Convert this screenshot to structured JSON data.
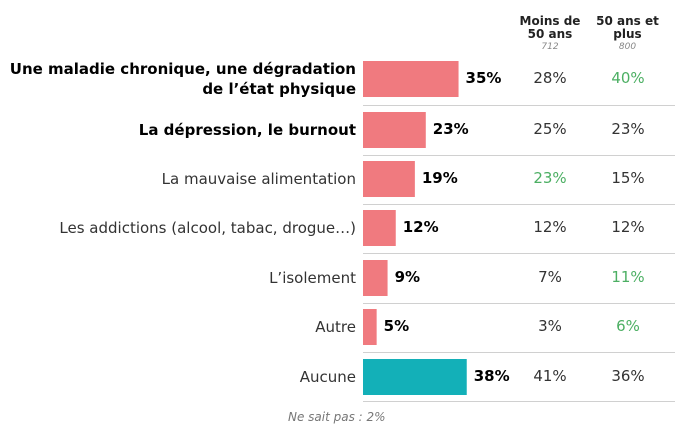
{
  "chart_data": {
    "type": "bar",
    "orientation": "horizontal",
    "categories": [
      "Une maladie chronique, une dégradation de l’état physique",
      "La dépression, le burnout",
      "La mauvaise alimentation",
      "Les addictions (alcool, tabac, drogue…)",
      "L’isolement",
      "Autre",
      "Aucune"
    ],
    "values": [
      35,
      23,
      19,
      12,
      9,
      5,
      38
    ],
    "value_labels": [
      "35%",
      "23%",
      "19%",
      "12%",
      "9%",
      "5%",
      "38%"
    ],
    "bold_categories": [
      true,
      true,
      false,
      false,
      false,
      false,
      false
    ],
    "bar_colors": [
      "#f07a7f",
      "#f07a7f",
      "#f07a7f",
      "#f07a7f",
      "#f07a7f",
      "#f07a7f",
      "#13b0b8"
    ],
    "highlight_color": "#4caf63",
    "columns": [
      {
        "title": "Moins de 50 ans",
        "base": "712",
        "values": [
          "28%",
          "25%",
          "23%",
          "12%",
          "7%",
          "3%",
          "41%"
        ],
        "highlight": [
          false,
          false,
          true,
          false,
          false,
          false,
          false
        ]
      },
      {
        "title": "50 ans et plus",
        "base": "800",
        "values": [
          "40%",
          "23%",
          "15%",
          "12%",
          "11%",
          "6%",
          "36%"
        ],
        "highlight": [
          true,
          false,
          false,
          false,
          true,
          true,
          false
        ]
      }
    ],
    "footnote": "Ne sait pas : 2%"
  }
}
